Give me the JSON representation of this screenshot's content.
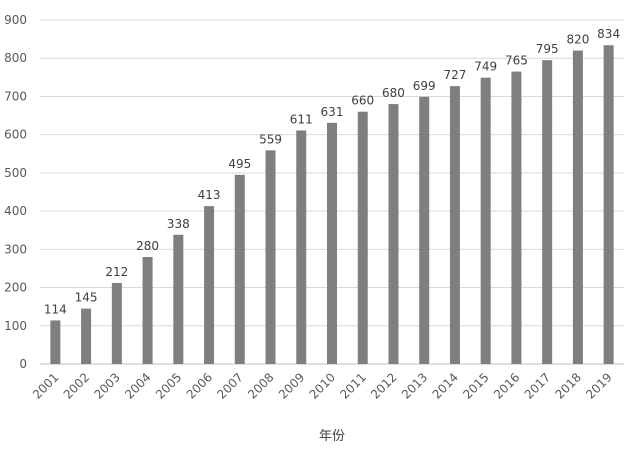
{
  "chart_data": {
    "type": "bar",
    "title": "",
    "xlabel": "年份",
    "ylabel": "",
    "categories": [
      "2001",
      "2002",
      "2003",
      "2004",
      "2005",
      "2006",
      "2007",
      "2008",
      "2009",
      "2010",
      "2011",
      "2012",
      "2013",
      "2014",
      "2015",
      "2016",
      "2017",
      "2018",
      "2019"
    ],
    "values": [
      114,
      145,
      212,
      280,
      338,
      413,
      495,
      559,
      611,
      631,
      660,
      680,
      699,
      727,
      749,
      765,
      795,
      820,
      834
    ],
    "ylim": [
      0,
      900
    ],
    "yticks": [
      0,
      100,
      200,
      300,
      400,
      500,
      600,
      700,
      800,
      900
    ],
    "grid": true,
    "data_labels": true,
    "bar_color": "#7f7f7f",
    "legend": "none"
  }
}
